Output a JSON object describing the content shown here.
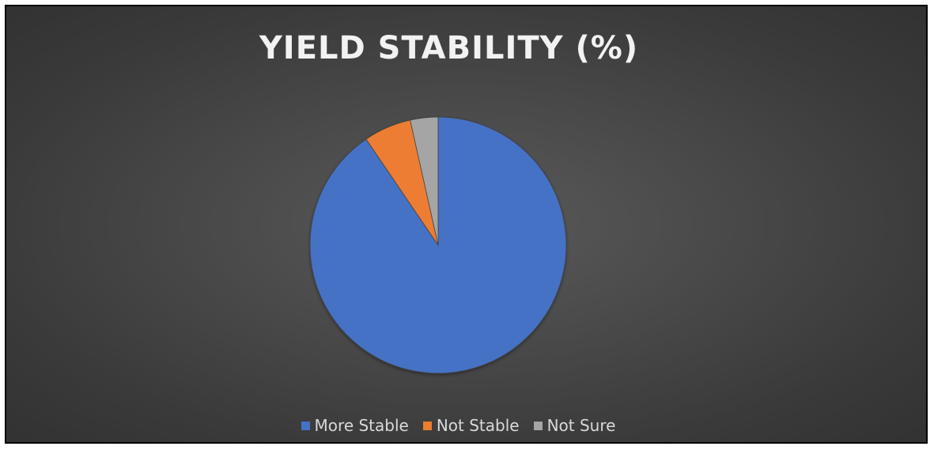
{
  "chart_data": {
    "type": "pie",
    "title": "YIELD STABILITY (%)",
    "categories": [
      "More Stable",
      "Not Stable",
      "Not Sure"
    ],
    "values": [
      90.5,
      6,
      3.5
    ],
    "colors": [
      "#4472C4",
      "#ED7D31",
      "#A5A5A5"
    ],
    "legend_position": "bottom"
  }
}
